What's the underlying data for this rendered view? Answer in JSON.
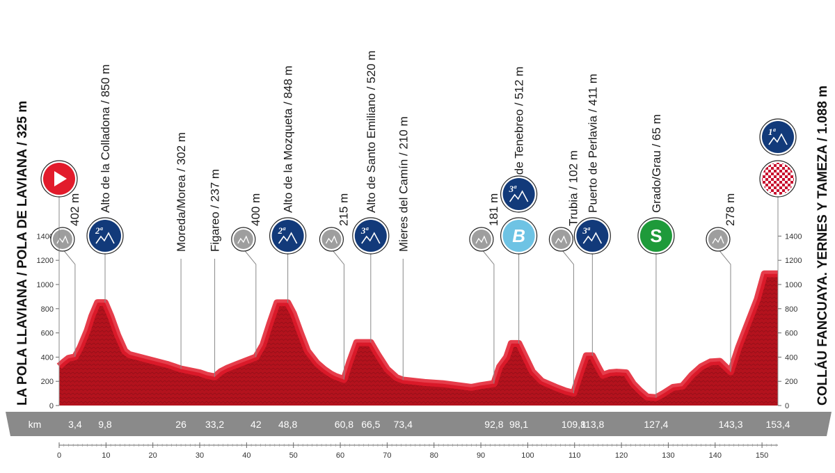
{
  "chart_data": {
    "type": "area",
    "title": "",
    "xlabel": "km",
    "ylabel": "",
    "xlim": [
      0,
      155
    ],
    "ylim": [
      0,
      1500
    ],
    "x_ticks": [
      0,
      10,
      20,
      30,
      40,
      50,
      60,
      70,
      80,
      90,
      100,
      110,
      120,
      130,
      140,
      150
    ],
    "y_ticks": [
      0,
      200,
      400,
      600,
      800,
      1000,
      1200,
      1400
    ],
    "grid": false,
    "start_label": "LA POLA LLAVIANA / POLA DE LAVIANA / 325 m",
    "finish_label": "COLLÁU FANCUAYA. YERNES Y TAMEZA / 1.088 m",
    "profile": [
      {
        "km": 0,
        "alt": 325
      },
      {
        "km": 1,
        "alt": 360
      },
      {
        "km": 2,
        "alt": 390
      },
      {
        "km": 3.4,
        "alt": 402
      },
      {
        "km": 4.5,
        "alt": 480
      },
      {
        "km": 6,
        "alt": 620
      },
      {
        "km": 7,
        "alt": 740
      },
      {
        "km": 8.2,
        "alt": 850
      },
      {
        "km": 9.8,
        "alt": 850
      },
      {
        "km": 11,
        "alt": 740
      },
      {
        "km": 12.5,
        "alt": 580
      },
      {
        "km": 14,
        "alt": 450
      },
      {
        "km": 15,
        "alt": 420
      },
      {
        "km": 17,
        "alt": 400
      },
      {
        "km": 20,
        "alt": 370
      },
      {
        "km": 23,
        "alt": 340
      },
      {
        "km": 26,
        "alt": 302
      },
      {
        "km": 30,
        "alt": 270
      },
      {
        "km": 31.5,
        "alt": 250
      },
      {
        "km": 33.2,
        "alt": 237
      },
      {
        "km": 34.5,
        "alt": 280
      },
      {
        "km": 36,
        "alt": 310
      },
      {
        "km": 38,
        "alt": 340
      },
      {
        "km": 40,
        "alt": 370
      },
      {
        "km": 42,
        "alt": 400
      },
      {
        "km": 43.5,
        "alt": 500
      },
      {
        "km": 45,
        "alt": 680
      },
      {
        "km": 46.5,
        "alt": 848
      },
      {
        "km": 48.8,
        "alt": 848
      },
      {
        "km": 50,
        "alt": 760
      },
      {
        "km": 51.5,
        "alt": 600
      },
      {
        "km": 53,
        "alt": 450
      },
      {
        "km": 55,
        "alt": 350
      },
      {
        "km": 56.5,
        "alt": 300
      },
      {
        "km": 58,
        "alt": 260
      },
      {
        "km": 59,
        "alt": 240
      },
      {
        "km": 60.8,
        "alt": 215
      },
      {
        "km": 62,
        "alt": 360
      },
      {
        "km": 63.5,
        "alt": 520
      },
      {
        "km": 66.5,
        "alt": 520
      },
      {
        "km": 68,
        "alt": 420
      },
      {
        "km": 70,
        "alt": 300
      },
      {
        "km": 72,
        "alt": 230
      },
      {
        "km": 73.4,
        "alt": 210
      },
      {
        "km": 78,
        "alt": 190
      },
      {
        "km": 82,
        "alt": 180
      },
      {
        "km": 86,
        "alt": 160
      },
      {
        "km": 88,
        "alt": 150
      },
      {
        "km": 90,
        "alt": 165
      },
      {
        "km": 92.8,
        "alt": 181
      },
      {
        "km": 94,
        "alt": 320
      },
      {
        "km": 95.5,
        "alt": 400
      },
      {
        "km": 96.5,
        "alt": 512
      },
      {
        "km": 98.1,
        "alt": 512
      },
      {
        "km": 99.5,
        "alt": 400
      },
      {
        "km": 101,
        "alt": 280
      },
      {
        "km": 103,
        "alt": 200
      },
      {
        "km": 106,
        "alt": 150
      },
      {
        "km": 108,
        "alt": 120
      },
      {
        "km": 109.8,
        "alt": 102
      },
      {
        "km": 111.5,
        "alt": 300
      },
      {
        "km": 112.5,
        "alt": 411
      },
      {
        "km": 113.8,
        "alt": 411
      },
      {
        "km": 115,
        "alt": 320
      },
      {
        "km": 116,
        "alt": 250
      },
      {
        "km": 117.5,
        "alt": 270
      },
      {
        "km": 119,
        "alt": 275
      },
      {
        "km": 121,
        "alt": 270
      },
      {
        "km": 122.5,
        "alt": 180
      },
      {
        "km": 124,
        "alt": 120
      },
      {
        "km": 125.5,
        "alt": 70
      },
      {
        "km": 127.4,
        "alt": 65
      },
      {
        "km": 129,
        "alt": 100
      },
      {
        "km": 131,
        "alt": 150
      },
      {
        "km": 133,
        "alt": 160
      },
      {
        "km": 135,
        "alt": 250
      },
      {
        "km": 137,
        "alt": 320
      },
      {
        "km": 139,
        "alt": 360
      },
      {
        "km": 141,
        "alt": 365
      },
      {
        "km": 143.3,
        "alt": 278
      },
      {
        "km": 145,
        "alt": 480
      },
      {
        "km": 147,
        "alt": 680
      },
      {
        "km": 149,
        "alt": 880
      },
      {
        "km": 150.5,
        "alt": 1088
      },
      {
        "km": 153.4,
        "alt": 1088
      }
    ],
    "points": [
      {
        "km": 3.4,
        "label": "402 m",
        "km_label": "3,4",
        "icon": "feed-zone-icon",
        "badge": "",
        "color": "#9e9e9e",
        "text_color": "#ffffff"
      },
      {
        "km": 9.8,
        "label": "Alto de la Colladona / 850 m",
        "km_label": "9,8",
        "icon": "mountain-cat2-icon",
        "badge": "2ª",
        "color": "#123a7a",
        "text_color": "#ffffff"
      },
      {
        "km": 26,
        "label": "Moreda/Morea / 302 m",
        "km_label": "26",
        "icon": "",
        "badge": "",
        "color": "",
        "text_color": ""
      },
      {
        "km": 33.2,
        "label": "Figareo / 237 m",
        "km_label": "33,2",
        "icon": "",
        "badge": "",
        "color": "",
        "text_color": ""
      },
      {
        "km": 42,
        "label": "400 m",
        "km_label": "42",
        "icon": "feed-zone-icon",
        "badge": "",
        "color": "#9e9e9e",
        "text_color": "#ffffff"
      },
      {
        "km": 48.8,
        "label": "Alto de la Mozqueta / 848 m",
        "km_label": "48,8",
        "icon": "mountain-cat2-icon",
        "badge": "2ª",
        "color": "#123a7a",
        "text_color": "#ffffff"
      },
      {
        "km": 60.8,
        "label": "215 m",
        "km_label": "60,8",
        "icon": "feed-zone-icon",
        "badge": "",
        "color": "#9e9e9e",
        "text_color": "#ffffff"
      },
      {
        "km": 66.5,
        "label": "Alto de Santo Emiliano / 520 m",
        "km_label": "66,5",
        "icon": "mountain-cat3-icon",
        "badge": "3ª",
        "color": "#123a7a",
        "text_color": "#ffffff"
      },
      {
        "km": 73.4,
        "label": "Mieres del Camín / 210 m",
        "km_label": "73,4",
        "icon": "",
        "badge": "",
        "color": "",
        "text_color": ""
      },
      {
        "km": 92.8,
        "label": "181 m",
        "km_label": "92,8",
        "icon": "feed-zone-icon",
        "badge": "",
        "color": "#9e9e9e",
        "text_color": "#ffffff"
      },
      {
        "km": 98.1,
        "label": "Puerto de Tenebreo / 512 m",
        "km_label": "98,1",
        "icon": "bonus-sprint-icon",
        "badge": "B",
        "color": "#6ec3e4",
        "text_color": "#ffffff"
      },
      {
        "km": 109.8,
        "label": "Trubia / 102 m",
        "km_label": "109,8",
        "icon": "feed-zone-icon",
        "badge": "",
        "color": "#9e9e9e",
        "text_color": "#ffffff"
      },
      {
        "km": 113.8,
        "label": "Puerto de Perlavia / 411 m",
        "km_label": "113,8",
        "icon": "mountain-cat3-icon",
        "badge": "3ª",
        "color": "#123a7a",
        "text_color": "#ffffff"
      },
      {
        "km": 127.4,
        "label": "Grado/Grau / 65 m",
        "km_label": "127,4",
        "icon": "sprint-icon",
        "badge": "S",
        "color": "#1e9a3a",
        "text_color": "#ffffff"
      },
      {
        "km": 143.3,
        "label": "278 m",
        "km_label": "143,3",
        "icon": "feed-zone-icon",
        "badge": "",
        "color": "#9e9e9e",
        "text_color": "#ffffff"
      },
      {
        "km": 153.4,
        "label": "",
        "km_label": "153,4",
        "icon": "finish-flag-icon",
        "badge": "",
        "color": "#c8102e",
        "text_color": "#ffffff"
      }
    ],
    "extra_badges": [
      {
        "km": 98.1,
        "icon": "mountain-cat3-icon",
        "badge": "3ª",
        "color": "#123a7a"
      },
      {
        "km": 153.4,
        "icon": "mountain-cat1-icon",
        "badge": "1ª",
        "color": "#123a7a"
      }
    ],
    "start_icon": "start-play-icon",
    "colors": {
      "profile_fill": "#b3121d",
      "profile_highlight": "#e21b2b",
      "profile_dark": "#7a0a12",
      "km_bar": "#8a8a8a",
      "start": "#e21b2b",
      "kom": "#123a7a",
      "sprint": "#1e9a3a",
      "bonus": "#6ec3e4",
      "feed": "#9e9e9e"
    }
  }
}
